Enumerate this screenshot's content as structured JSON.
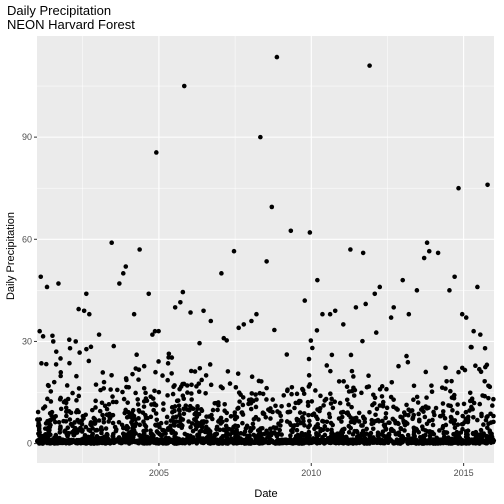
{
  "chart_data": {
    "type": "scatter",
    "title": "Daily Precipitation",
    "subtitle": "NEON Harvard Forest",
    "xlabel": "Date",
    "ylabel": "Daily Precipitation",
    "xlim": [
      "2001-01-01",
      "2015-12-31"
    ],
    "ylim": [
      -5.7,
      119.7
    ],
    "x_ticks": [
      {
        "date": "2005-01-01",
        "label": "2005"
      },
      {
        "date": "2010-01-01",
        "label": "2010"
      },
      {
        "date": "2015-01-01",
        "label": "2015"
      }
    ],
    "y_ticks": [
      {
        "value": 0,
        "label": "0"
      },
      {
        "value": 30,
        "label": "30"
      },
      {
        "value": 60,
        "label": "60"
      },
      {
        "value": 90,
        "label": "90"
      }
    ],
    "grid": true,
    "point_color": "#000000",
    "panel_color": "#ebebeb",
    "grid_color": "#ffffff",
    "series": [
      {
        "points": [
          [
            "2001-02-15",
            49.0
          ],
          [
            "2001-03-15",
            31.5
          ],
          [
            "2001-02-02",
            33.0
          ],
          [
            "2001-05-01",
            46.0
          ],
          [
            "2001-07-15",
            30.0
          ],
          [
            "2001-09-15",
            47.0
          ],
          [
            "2001-08-20",
            27.0
          ],
          [
            "2001-10-10",
            25.0
          ],
          [
            "2002-02-01",
            28.0
          ],
          [
            "2002-05-15",
            39.5
          ],
          [
            "2002-07-20",
            39.0
          ],
          [
            "2002-08-15",
            44.0
          ],
          [
            "2002-09-20",
            38.0
          ],
          [
            "2002-04-10",
            30.0
          ],
          [
            "2003-01-15",
            32.0
          ],
          [
            "2003-06-15",
            59.0
          ],
          [
            "2003-09-15",
            47.0
          ],
          [
            "2003-11-01",
            50.0
          ],
          [
            "2003-12-01",
            52.0
          ],
          [
            "2004-05-15",
            57.0
          ],
          [
            "2004-03-10",
            38.0
          ],
          [
            "2004-09-01",
            44.0
          ],
          [
            "2004-10-15",
            32.0
          ],
          [
            "2004-11-15",
            33.0
          ],
          [
            "2004-12-01",
            85.5
          ],
          [
            "2005-07-15",
            40.0
          ],
          [
            "2005-09-15",
            41.5
          ],
          [
            "2005-10-15",
            44.5
          ],
          [
            "2005-11-01",
            105.0
          ],
          [
            "2006-01-15",
            38.5
          ],
          [
            "2006-06-20",
            39.0
          ],
          [
            "2006-09-15",
            36.0
          ],
          [
            "2007-01-20",
            50.0
          ],
          [
            "2007-06-20",
            56.5
          ],
          [
            "2007-08-15",
            34.0
          ],
          [
            "2007-10-15",
            35.0
          ],
          [
            "2008-01-15",
            36.0
          ],
          [
            "2008-03-15",
            38.0
          ],
          [
            "2008-05-01",
            90.0
          ],
          [
            "2008-07-15",
            53.5
          ],
          [
            "2008-09-15",
            69.5
          ],
          [
            "2008-11-15",
            113.5
          ],
          [
            "2009-05-01",
            62.5
          ],
          [
            "2009-10-15",
            42.0
          ],
          [
            "2009-12-15",
            62.0
          ],
          [
            "2010-03-15",
            48.0
          ],
          [
            "2010-05-15",
            38.0
          ],
          [
            "2010-08-15",
            38.0
          ],
          [
            "2010-10-15",
            39.0
          ],
          [
            "2011-01-20",
            35.0
          ],
          [
            "2011-04-15",
            57.0
          ],
          [
            "2011-06-20",
            40.0
          ],
          [
            "2011-09-15",
            56.0
          ],
          [
            "2011-10-15",
            41.0
          ],
          [
            "2011-12-01",
            111.0
          ],
          [
            "2012-04-01",
            46.0
          ],
          [
            "2012-02-01",
            44.0
          ],
          [
            "2012-08-15",
            37.0
          ],
          [
            "2012-09-15",
            40.0
          ],
          [
            "2013-01-01",
            48.0
          ],
          [
            "2013-03-15",
            38.0
          ],
          [
            "2013-06-20",
            45.0
          ],
          [
            "2013-09-15",
            54.5
          ],
          [
            "2013-10-20",
            59.0
          ],
          [
            "2013-11-15",
            56.5
          ],
          [
            "2014-03-01",
            56.0
          ],
          [
            "2014-07-15",
            45.0
          ],
          [
            "2014-09-15",
            49.0
          ],
          [
            "2014-11-01",
            75.0
          ],
          [
            "2014-12-15",
            38.0
          ],
          [
            "2015-02-01",
            37.0
          ],
          [
            "2015-06-15",
            46.0
          ],
          [
            "2015-05-01",
            33.0
          ],
          [
            "2015-07-20",
            32.0
          ],
          [
            "2015-09-15",
            28.0
          ],
          [
            "2015-10-15",
            76.0
          ]
        ]
      }
    ],
    "generated_background": {
      "count": 2300,
      "seed": 42,
      "start": "2001-01-01",
      "end": "2015-12-31",
      "upper": 36
    }
  }
}
